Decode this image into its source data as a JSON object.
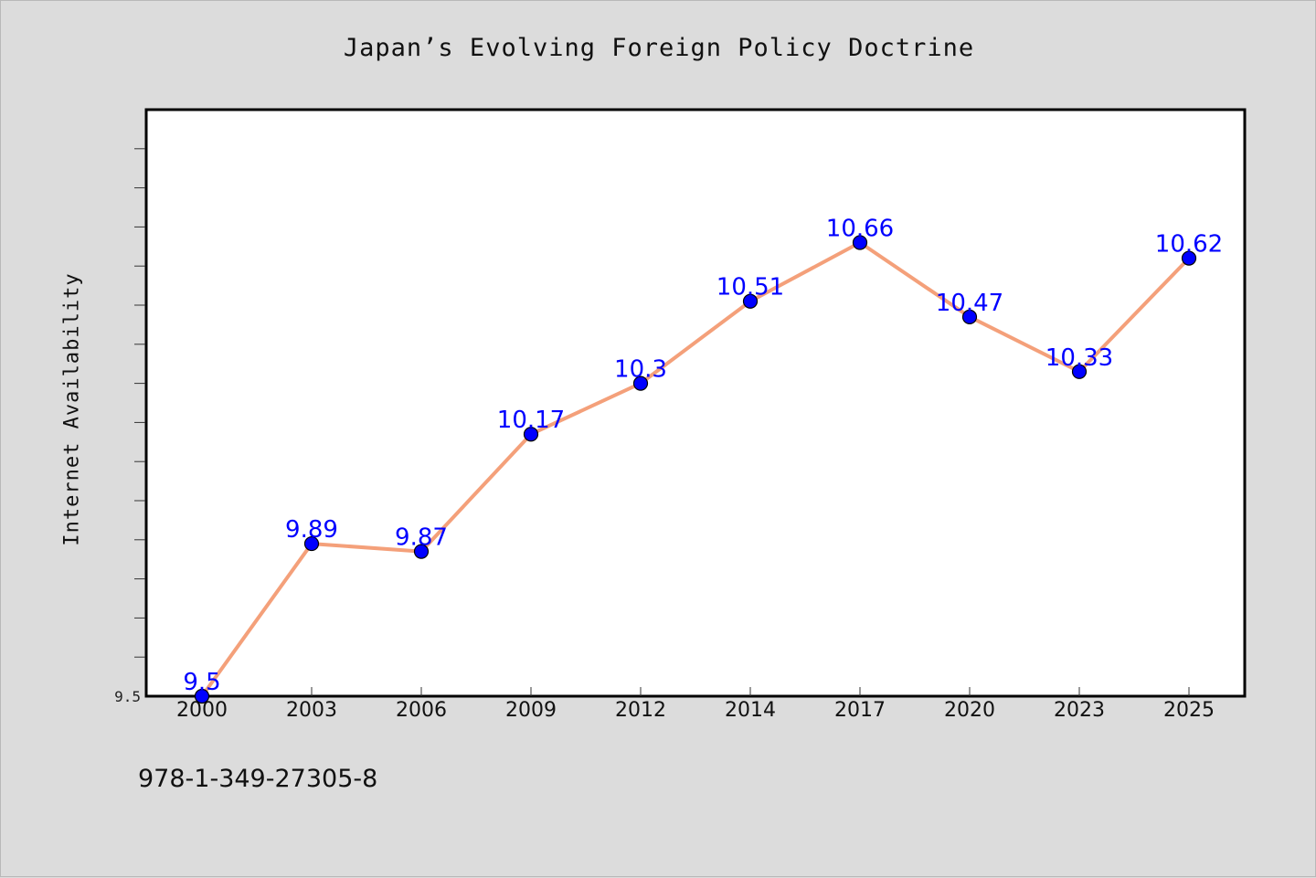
{
  "chart_data": {
    "type": "line",
    "title": "Japan’s Evolving Foreign Policy Doctrine",
    "ylabel": "Internet Availability",
    "xlabel": "",
    "categories": [
      "2000",
      "2003",
      "2006",
      "2009",
      "2012",
      "2014",
      "2017",
      "2020",
      "2023",
      "2025"
    ],
    "series": [
      {
        "values": [
          9.5,
          9.89,
          9.87,
          10.17,
          10.3,
          10.51,
          10.66,
          10.47,
          10.33,
          10.62
        ],
        "labels": [
          "9.5",
          "9.89",
          "9.87",
          "10.17",
          "10.3",
          "10.51",
          "10.66",
          "10.47",
          "10.33",
          "10.62"
        ]
      }
    ],
    "y_tick_labels": [
      "9.5"
    ],
    "ylim": [
      9.5,
      11.0
    ],
    "grid": false,
    "colors": {
      "line": "#f4a07a",
      "marker": "#0000ff",
      "data_label": "#0000ff",
      "background": "#dcdcdc",
      "plot_background": "#ffffff"
    }
  },
  "footer": {
    "code": "978-1-349-27305-8"
  }
}
